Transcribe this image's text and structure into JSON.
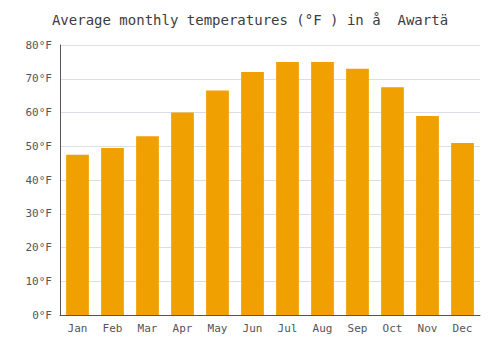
{
  "chart_data": {
    "type": "bar",
    "title": "Average monthly temperatures (°F ) in å  Awartä",
    "categories": [
      "Jan",
      "Feb",
      "Mar",
      "Apr",
      "May",
      "Jun",
      "Jul",
      "Aug",
      "Sep",
      "Oct",
      "Nov",
      "Dec"
    ],
    "values": [
      47.5,
      49.5,
      53,
      60,
      66.5,
      72,
      75,
      75,
      73,
      67.5,
      59,
      51
    ],
    "color": "#F0A000",
    "ylim": [
      0,
      80
    ],
    "yticks": [
      {
        "value": 0,
        "label": "0°F"
      },
      {
        "value": 10,
        "label": "10°F"
      },
      {
        "value": 20,
        "label": "20°F"
      },
      {
        "value": 30,
        "label": "30°F"
      },
      {
        "value": 40,
        "label": "40°F"
      },
      {
        "value": 50,
        "label": "50°F"
      },
      {
        "value": 60,
        "label": "60°F"
      },
      {
        "value": 70,
        "label": "70°F"
      },
      {
        "value": 80,
        "label": "80°F"
      }
    ],
    "grid": true
  }
}
